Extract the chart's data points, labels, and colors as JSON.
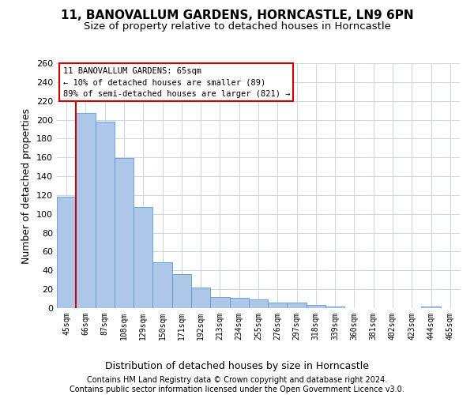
{
  "title": "11, BANOVALLUM GARDENS, HORNCASTLE, LN9 6PN",
  "subtitle": "Size of property relative to detached houses in Horncastle",
  "xlabel": "Distribution of detached houses by size in Horncastle",
  "ylabel": "Number of detached properties",
  "categories": [
    "45sqm",
    "66sqm",
    "87sqm",
    "108sqm",
    "129sqm",
    "150sqm",
    "171sqm",
    "192sqm",
    "213sqm",
    "234sqm",
    "255sqm",
    "276sqm",
    "297sqm",
    "318sqm",
    "339sqm",
    "360sqm",
    "381sqm",
    "402sqm",
    "423sqm",
    "444sqm",
    "465sqm"
  ],
  "values": [
    118,
    207,
    198,
    159,
    107,
    49,
    36,
    22,
    12,
    11,
    9,
    6,
    6,
    3,
    2,
    0,
    0,
    0,
    0,
    2,
    0
  ],
  "bar_color": "#aec6e8",
  "bar_edge_color": "#5b9bd5",
  "property_line_color": "#cc0000",
  "ylim": [
    0,
    260
  ],
  "yticks": [
    0,
    20,
    40,
    60,
    80,
    100,
    120,
    140,
    160,
    180,
    200,
    220,
    240,
    260
  ],
  "annotation_line1": "11 BANOVALLUM GARDENS: 65sqm",
  "annotation_line2": "← 10% of detached houses are smaller (89)",
  "annotation_line3": "89% of semi-detached houses are larger (821) →",
  "annotation_box_color": "#ffffff",
  "annotation_box_edge": "#cc0000",
  "footer_line1": "Contains HM Land Registry data © Crown copyright and database right 2024.",
  "footer_line2": "Contains public sector information licensed under the Open Government Licence v3.0.",
  "background_color": "#ffffff",
  "grid_color": "#c8d4e8"
}
